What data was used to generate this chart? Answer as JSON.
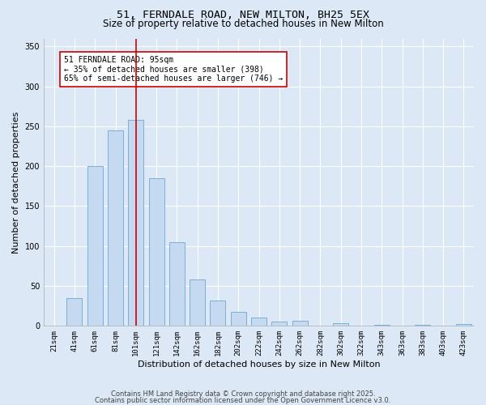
{
  "title_line1": "51, FERNDALE ROAD, NEW MILTON, BH25 5EX",
  "title_line2": "Size of property relative to detached houses in New Milton",
  "xlabel": "Distribution of detached houses by size in New Milton",
  "ylabel": "Number of detached properties",
  "categories": [
    "21sqm",
    "41sqm",
    "61sqm",
    "81sqm",
    "101sqm",
    "121sqm",
    "142sqm",
    "162sqm",
    "182sqm",
    "202sqm",
    "222sqm",
    "242sqm",
    "262sqm",
    "282sqm",
    "302sqm",
    "322sqm",
    "343sqm",
    "363sqm",
    "383sqm",
    "403sqm",
    "423sqm"
  ],
  "values": [
    0,
    35,
    200,
    245,
    258,
    185,
    105,
    58,
    32,
    18,
    10,
    5,
    6,
    0,
    3,
    0,
    1,
    0,
    1,
    0,
    2
  ],
  "bar_color": "#c5d9f0",
  "bar_edge_color": "#7aafd4",
  "bar_edge_width": 0.7,
  "bar_width": 0.75,
  "vline_x": 4,
  "vline_color": "#cc0000",
  "annotation_text": "51 FERNDALE ROAD: 95sqm\n← 35% of detached houses are smaller (398)\n65% of semi-detached houses are larger (746) →",
  "annotation_box_color": "#ffffff",
  "annotation_box_edge": "#cc0000",
  "background_color": "#dce8f5",
  "grid_color": "#ffffff",
  "ylim": [
    0,
    360
  ],
  "yticks": [
    0,
    50,
    100,
    150,
    200,
    250,
    300,
    350
  ],
  "footer_line1": "Contains HM Land Registry data © Crown copyright and database right 2025.",
  "footer_line2": "Contains public sector information licensed under the Open Government Licence v3.0.",
  "title_fontsize": 9.5,
  "subtitle_fontsize": 8.5,
  "axis_label_fontsize": 8,
  "tick_fontsize": 6.5,
  "annotation_fontsize": 7,
  "footer_fontsize": 6
}
